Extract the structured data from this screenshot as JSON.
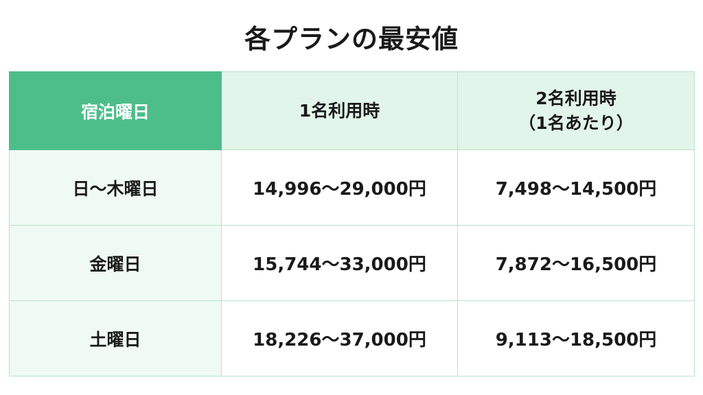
{
  "title": "各プランの最安値",
  "table": {
    "corner_label": "宿泊曜日",
    "columns": [
      {
        "line1": "1名利用時",
        "line2": ""
      },
      {
        "line1": "2名利用時",
        "line2": "（1名あたり）"
      }
    ],
    "rows": [
      {
        "label": "日〜木曜日",
        "single": "14,996〜29,000円",
        "double": "7,498〜14,500円"
      },
      {
        "label": "金曜日",
        "single": "15,744〜33,000円",
        "double": "7,872〜16,500円"
      },
      {
        "label": "土曜日",
        "single": "18,226〜37,000円",
        "double": "9,113〜18,500円"
      }
    ]
  },
  "colors": {
    "accent_green": "#4dbd8a",
    "header_tint": "#e2f5ea",
    "row_tint": "#effaf4",
    "border": "#b9e2cc"
  }
}
